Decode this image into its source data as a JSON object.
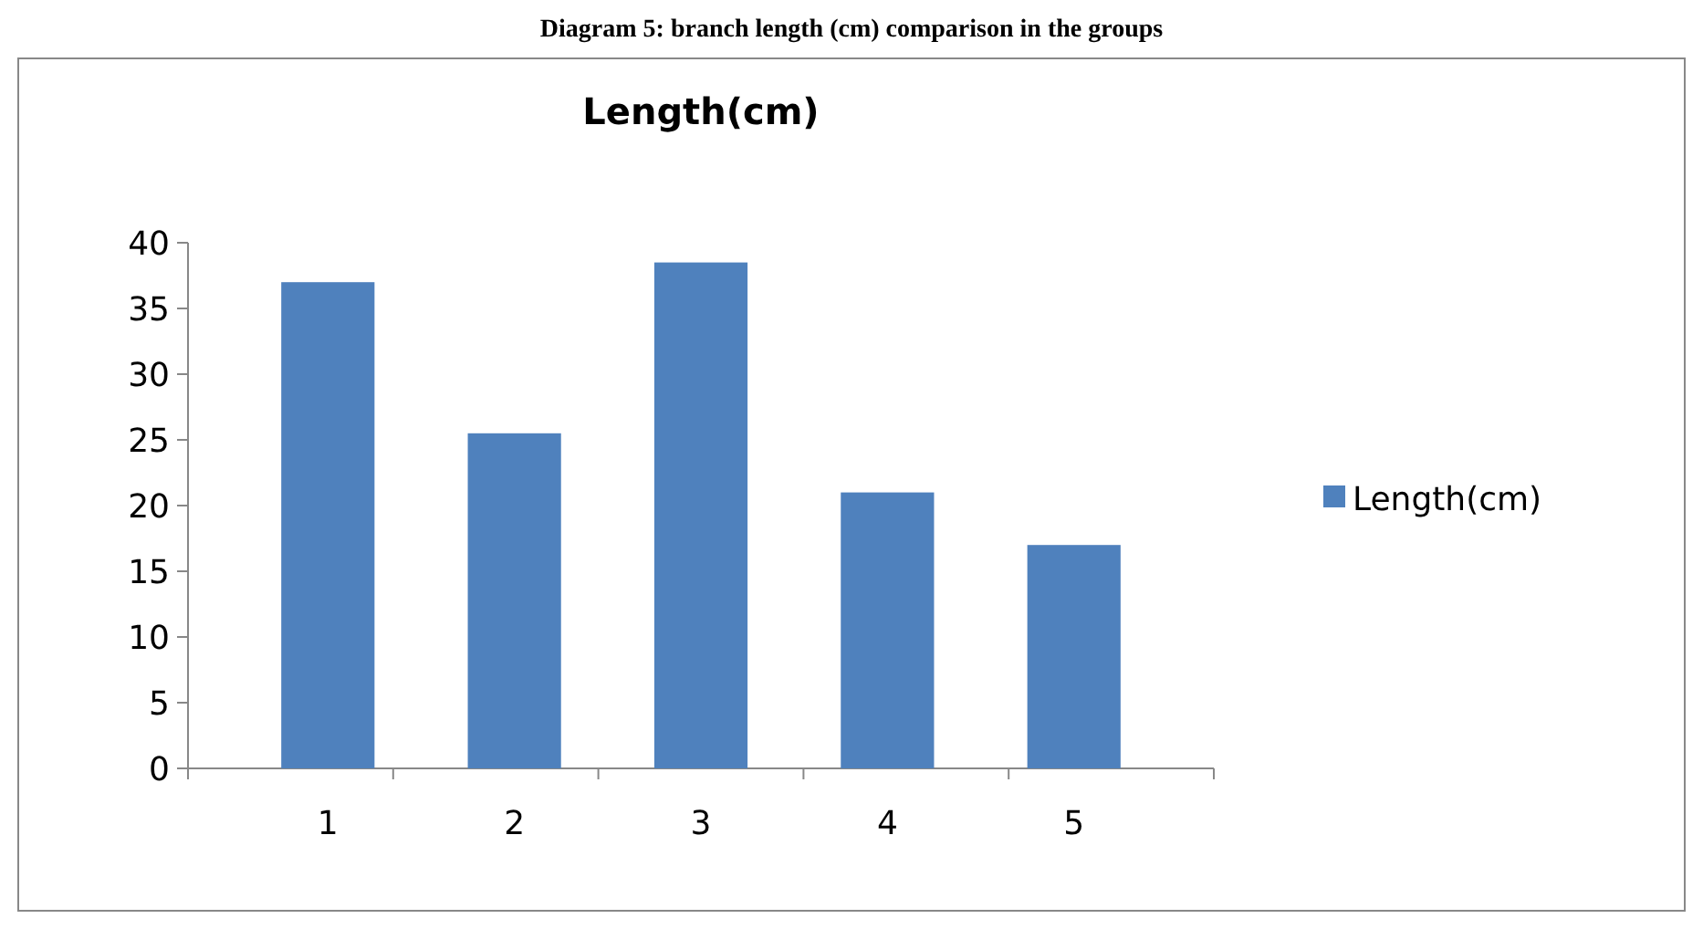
{
  "chart_data": {
    "type": "bar",
    "title": "Length(cm)",
    "annotations": [
      "Diagram 5: branch length (cm) comparison in the groups"
    ],
    "categories": [
      "1",
      "2",
      "3",
      "4",
      "5"
    ],
    "series": [
      {
        "name": "Length(cm)",
        "color": "#4f81bd",
        "values": [
          37,
          25.5,
          38.5,
          21,
          17
        ]
      }
    ],
    "ylim": [
      0,
      40
    ],
    "yticks": [
      0,
      5,
      10,
      15,
      20,
      25,
      30,
      35,
      40
    ],
    "grid": false,
    "legend": "right"
  }
}
